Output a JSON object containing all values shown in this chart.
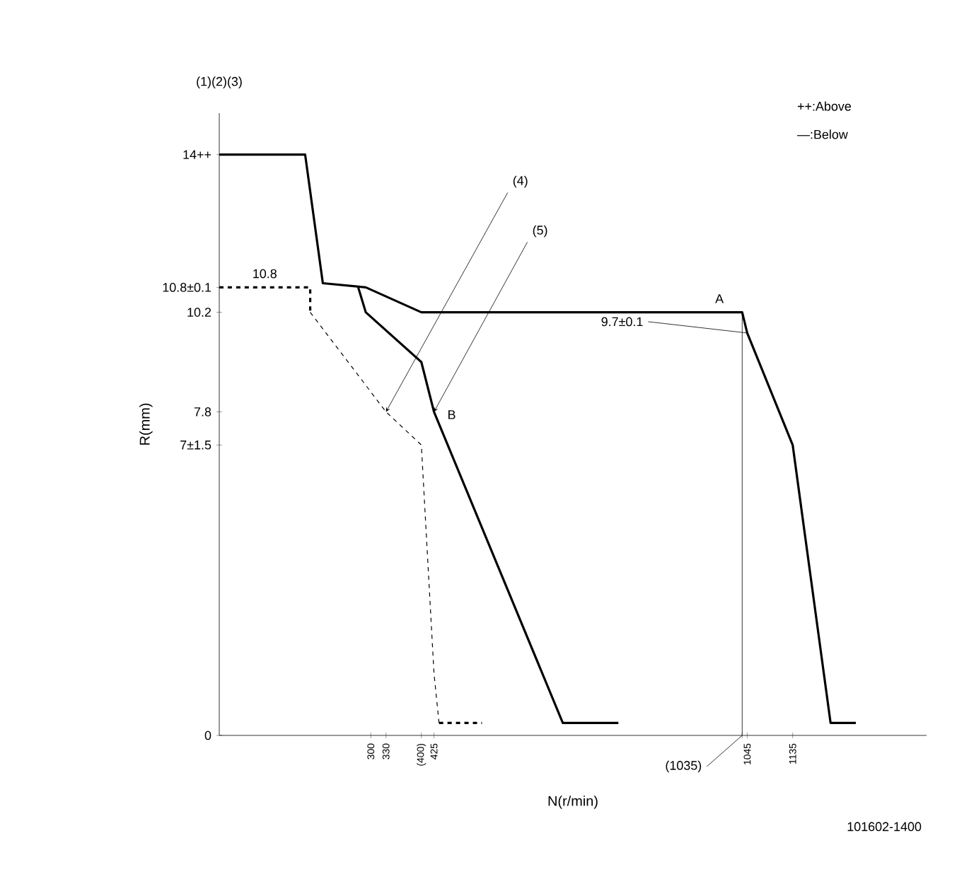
{
  "chart_data": {
    "type": "line",
    "xlabel": "N(r/min)",
    "ylabel": "R(mm)",
    "xlim": [
      0,
      1400
    ],
    "ylim": [
      0,
      15
    ],
    "xticks": [
      300,
      330,
      {
        "value": 400,
        "label": "(400)"
      },
      425,
      {
        "value": 1035,
        "label": null
      },
      1045,
      1135
    ],
    "yticks": [
      0,
      {
        "value": 7,
        "label": "7±1.5"
      },
      7.8,
      10.2,
      {
        "value": 10.8,
        "label": "10.8±0.1"
      },
      {
        "value": 14,
        "label": "14++"
      }
    ],
    "grid": false,
    "series": [
      {
        "color": "#000000",
        "line_style": "solid",
        "x": [
          0,
          170,
          205,
          290,
          400,
          1035,
          1045,
          1135,
          1210,
          1260
        ],
        "values": [
          14,
          14,
          10.9,
          10.8,
          10.2,
          10.2,
          9.7,
          7,
          0.3,
          0.3
        ]
      },
      {
        "color": "#000000",
        "line_style": "solid",
        "x": [
          275,
          290,
          400,
          425,
          680,
          790
        ],
        "values": [
          10.8,
          10.2,
          9.0,
          7.8,
          0.3,
          0.3
        ]
      },
      {
        "color": "#000000",
        "line_style": "dashed",
        "x": [
          0,
          180,
          180
        ],
        "values": [
          10.8,
          10.8,
          10.2
        ]
      },
      {
        "color": "#000000",
        "line_style": "dotted",
        "x": [
          180,
          330,
          400,
          425,
          435
        ],
        "values": [
          10.2,
          7.8,
          7,
          1.5,
          0.3
        ]
      },
      {
        "color": "#000000",
        "line_style": "dashed",
        "x": [
          435,
          520
        ],
        "values": [
          0.3,
          0.3
        ]
      }
    ],
    "annotations": [
      "(1)(2)(3)",
      "++:Above",
      "—:Below",
      "101602-1400",
      {
        "text": "10.8",
        "x": 90,
        "y": 10.8
      },
      {
        "text": "(4)",
        "x": 330,
        "y": 7.8
      },
      {
        "text": "(5)",
        "x": 425,
        "y": 7.8
      },
      {
        "text": "A",
        "x": 990,
        "y": 10.2
      },
      {
        "text": "B",
        "x": 425,
        "y": 7.8
      },
      {
        "text": "9.7±0.1",
        "x": 1045,
        "y": 9.7
      },
      {
        "text": "(1035)",
        "x": 1035,
        "y": 10.2
      }
    ]
  }
}
